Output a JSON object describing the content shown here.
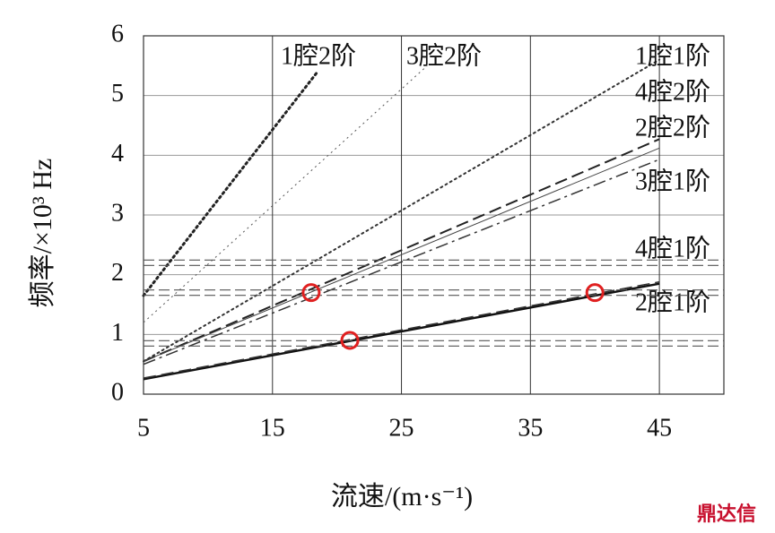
{
  "chart_data": {
    "type": "line",
    "x_label": "流速/(m·s⁻¹)",
    "y_label": "频率/×10³ Hz",
    "xlim": [
      5,
      50
    ],
    "xticks": [
      5,
      15,
      25,
      35,
      45
    ],
    "ylim": [
      0,
      6
    ],
    "yticks": [
      0,
      1,
      2,
      3,
      4,
      5,
      6
    ],
    "grid": true,
    "series": [
      {
        "name": "1腔2阶",
        "color": "#222222",
        "style": "dotted",
        "width": 3,
        "x": [
          5,
          18.5
        ],
        "values": [
          1.65,
          5.4
        ]
      },
      {
        "name": "3腔2阶",
        "color": "#555555",
        "style": "dotted",
        "width": 1,
        "x": [
          5,
          27
        ],
        "values": [
          1.2,
          5.5
        ]
      },
      {
        "name": "1腔1阶",
        "color": "#333333",
        "style": "dotted",
        "width": 2,
        "x": [
          5,
          45
        ],
        "values": [
          0.55,
          5.6
        ]
      },
      {
        "name": "4腔2阶",
        "color": "#222222",
        "style": "dashed",
        "width": 2,
        "x": [
          5,
          45
        ],
        "values": [
          0.55,
          4.27
        ]
      },
      {
        "name": "2腔2阶",
        "color": "#444444",
        "style": "solid",
        "width": 1,
        "x": [
          5,
          45
        ],
        "values": [
          0.55,
          4.12
        ]
      },
      {
        "name": "3腔1阶",
        "color": "#333333",
        "style": "dashdot",
        "width": 1.5,
        "x": [
          5,
          45
        ],
        "values": [
          0.5,
          3.93
        ]
      },
      {
        "name": "2腔1阶",
        "color": "#111111",
        "style": "solid",
        "width": 2.5,
        "x": [
          5,
          45
        ],
        "values": [
          0.25,
          1.85
        ]
      },
      {
        "color": "#333333",
        "style": "dashed",
        "width": 1.5,
        "x": [
          5,
          45
        ],
        "values": [
          0.27,
          1.88
        ]
      },
      {
        "name": "4腔1阶",
        "color": "#555555",
        "style": "double-dashed",
        "width": 1.2,
        "x": [
          5,
          50
        ],
        "values": [
          2.2,
          2.2
        ]
      },
      {
        "color": "#555555",
        "style": "double-dashed",
        "width": 1.2,
        "x": [
          5,
          50
        ],
        "values": [
          1.7,
          1.7
        ]
      },
      {
        "color": "#555555",
        "style": "double-dashed",
        "width": 1.2,
        "x": [
          5,
          50
        ],
        "values": [
          0.85,
          0.85
        ]
      }
    ],
    "markers": {
      "color": "#e02020",
      "x": [
        18,
        21,
        40
      ],
      "values": [
        1.7,
        0.9,
        1.7
      ]
    },
    "watermark": "鼎达信"
  }
}
